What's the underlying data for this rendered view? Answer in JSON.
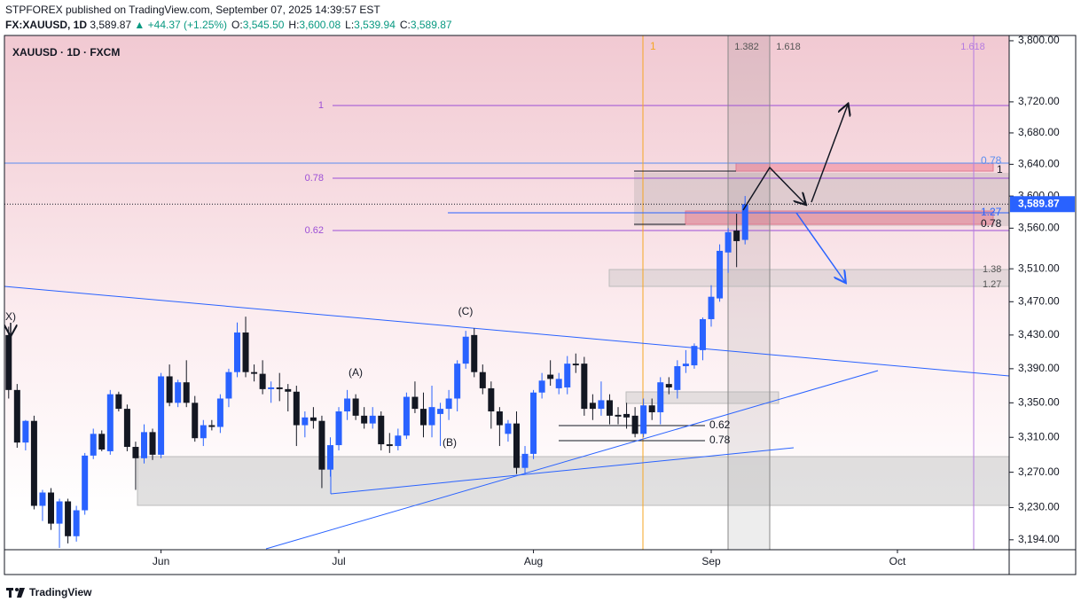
{
  "header": {
    "published": "STPFOREX published on TradingView.com, September 07, 2025 14:39:57 EST",
    "symbol": "FX:XAUUSD, 1D",
    "price": "3,589.87",
    "change": "▲ +44.37 (+1.25%)",
    "ohlc": [
      {
        "key": "O:",
        "value": "3,545.50"
      },
      {
        "key": "H:",
        "value": "3,600.08"
      },
      {
        "key": "L:",
        "value": "3,539.94"
      },
      {
        "key": "C:",
        "value": "3,589.87"
      }
    ]
  },
  "chart_data": {
    "type": "candlestick",
    "title": "XAUUSD · 1D · FXCM",
    "log_scale": true,
    "up_color": "#2962ff",
    "down_color": "#131722",
    "open": [
      3430,
      3365,
      3304,
      3329,
      3232,
      3247,
      3212,
      3237,
      3198,
      3227,
      3289,
      3314,
      3294,
      3360,
      3343,
      3299,
      3286,
      3316,
      3290,
      3381,
      3350,
      3374,
      3350,
      3309,
      3324,
      3322,
      3355,
      3386,
      3433,
      3386,
      3384,
      3366,
      3368,
      3366,
      3363,
      3324,
      3333,
      3329,
      3273,
      3301,
      3340,
      3355,
      3335,
      3326,
      3335,
      3302,
      3300,
      3312,
      3357,
      3343,
      3324,
      3337,
      3343,
      3355,
      3396,
      3430,
      3386,
      3367,
      3340,
      3314,
      3326,
      3275,
      3291,
      3362,
      3383,
      3367,
      3368,
      3396,
      3396,
      3350,
      3343,
      3353,
      3336,
      3337,
      3335,
      3314,
      3347,
      3339,
      3372,
      3365,
      3393,
      3394,
      3412,
      3449,
      3474,
      3530,
      3557,
      3545.5
    ],
    "high": [
      3440,
      3372,
      3330,
      3335,
      3250,
      3252,
      3240,
      3240,
      3232,
      3292,
      3320,
      3318,
      3365,
      3363,
      3348,
      3305,
      3325,
      3320,
      3385,
      3395,
      3377,
      3400,
      3358,
      3330,
      3330,
      3360,
      3390,
      3445,
      3452,
      3395,
      3400,
      3375,
      3385,
      3372,
      3370,
      3340,
      3345,
      3335,
      3310,
      3345,
      3365,
      3360,
      3345,
      3345,
      3340,
      3315,
      3320,
      3362,
      3375,
      3362,
      3370,
      3350,
      3365,
      3400,
      3435,
      3438,
      3395,
      3375,
      3345,
      3330,
      3340,
      3300,
      3365,
      3385,
      3400,
      3385,
      3405,
      3408,
      3404,
      3360,
      3375,
      3360,
      3345,
      3350,
      3345,
      3355,
      3355,
      3380,
      3380,
      3400,
      3412,
      3420,
      3451,
      3490,
      3540,
      3560,
      3578,
      3600.08
    ],
    "low": [
      3355,
      3298,
      3295,
      3228,
      3215,
      3205,
      3185,
      3190,
      3192,
      3222,
      3285,
      3294,
      3290,
      3340,
      3294,
      3250,
      3280,
      3284,
      3286,
      3346,
      3345,
      3345,
      3305,
      3300,
      3318,
      3315,
      3345,
      3380,
      3380,
      3375,
      3360,
      3350,
      3352,
      3340,
      3300,
      3310,
      3320,
      3252,
      3265,
      3295,
      3330,
      3330,
      3320,
      3320,
      3295,
      3292,
      3295,
      3308,
      3338,
      3310,
      3310,
      3300,
      3330,
      3340,
      3390,
      3380,
      3360,
      3320,
      3300,
      3305,
      3268,
      3268,
      3285,
      3355,
      3370,
      3360,
      3360,
      3385,
      3335,
      3330,
      3335,
      3325,
      3325,
      3320,
      3310,
      3310,
      3330,
      3325,
      3360,
      3355,
      3385,
      3390,
      3400,
      3440,
      3470,
      3505,
      3512,
      3539.94
    ],
    "close": [
      3365,
      3304,
      3329,
      3232,
      3247,
      3212,
      3237,
      3198,
      3227,
      3289,
      3314,
      3296,
      3360,
      3343,
      3299,
      3286,
      3316,
      3290,
      3381,
      3350,
      3374,
      3350,
      3309,
      3324,
      3322,
      3355,
      3386,
      3433,
      3386,
      3384,
      3366,
      3368,
      3366,
      3363,
      3324,
      3333,
      3329,
      3273,
      3301,
      3340,
      3355,
      3335,
      3326,
      3335,
      3302,
      3300,
      3312,
      3357,
      3343,
      3324,
      3345,
      3343,
      3355,
      3396,
      3428,
      3386,
      3367,
      3340,
      3324,
      3326,
      3275,
      3291,
      3362,
      3376,
      3378,
      3378,
      3396,
      3394,
      3343,
      3343,
      3353,
      3335,
      3334,
      3333,
      3314,
      3347,
      3339,
      3374,
      3368,
      3393,
      3396,
      3417,
      3449,
      3476,
      3532,
      3555,
      3544,
      3589.87
    ],
    "xlim": [
      -0.5,
      118.2
    ],
    "xticks": [
      {
        "value": 18,
        "label": "Jun"
      },
      {
        "value": 39,
        "label": "Jul"
      },
      {
        "value": 62,
        "label": "Aug"
      },
      {
        "value": 83,
        "label": "Sep"
      },
      {
        "value": 105,
        "label": "Oct"
      }
    ],
    "ylim": [
      3183,
      3807
    ],
    "yticks": [
      {
        "value": 3800,
        "label": "3,800.00"
      },
      {
        "value": 3720,
        "label": "3,720.00"
      },
      {
        "value": 3680,
        "label": "3,680.00"
      },
      {
        "value": 3640,
        "label": "3,640.00"
      },
      {
        "value": 3600,
        "label": "3,600.00"
      },
      {
        "value": 3560,
        "label": "3,560.00"
      },
      {
        "value": 3510,
        "label": "3,510.00"
      },
      {
        "value": 3470,
        "label": "3,470.00"
      },
      {
        "value": 3430,
        "label": "3,430.00"
      },
      {
        "value": 3390,
        "label": "3,390.00"
      },
      {
        "value": 3350,
        "label": "3,350.00"
      },
      {
        "value": 3310,
        "label": "3,310.00"
      },
      {
        "value": 3270,
        "label": "3,270.00"
      },
      {
        "value": 3230,
        "label": "3,230.00"
      },
      {
        "value": 3194,
        "label": "3,194.00"
      }
    ],
    "last_price_label": "3,589.87"
  },
  "annotations": [
    "1",
    "0.78",
    "0.62",
    "1",
    "1.382",
    "1.618",
    "1.618",
    "0.78",
    "1",
    "1.27",
    "0.78",
    "1.38",
    "1.27",
    "0.62",
    "0.78",
    "(A)",
    "(B)",
    "(C)",
    "X)"
  ],
  "footer": {
    "brand": "TradingView"
  }
}
